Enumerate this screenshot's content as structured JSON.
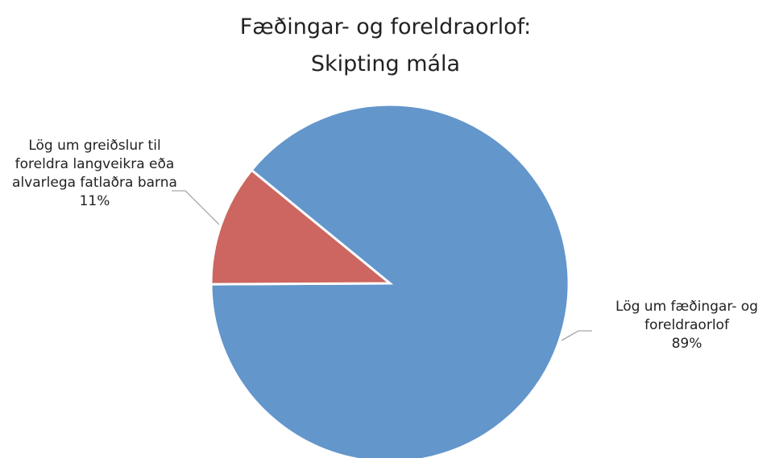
{
  "chart_data": {
    "type": "pie",
    "title": [
      "Fæðingar- og foreldraorlof:",
      "Skipting mála"
    ],
    "categories": [
      "Lög um fæðingar- og foreldraorlof",
      "Lög um greiðslur til foreldra langveikra eða alvarlega fatlaðra barna"
    ],
    "values": [
      89,
      11
    ],
    "value_labels": [
      "89%",
      "11%"
    ],
    "colors": [
      "#6396cb",
      "#cd6660"
    ]
  }
}
